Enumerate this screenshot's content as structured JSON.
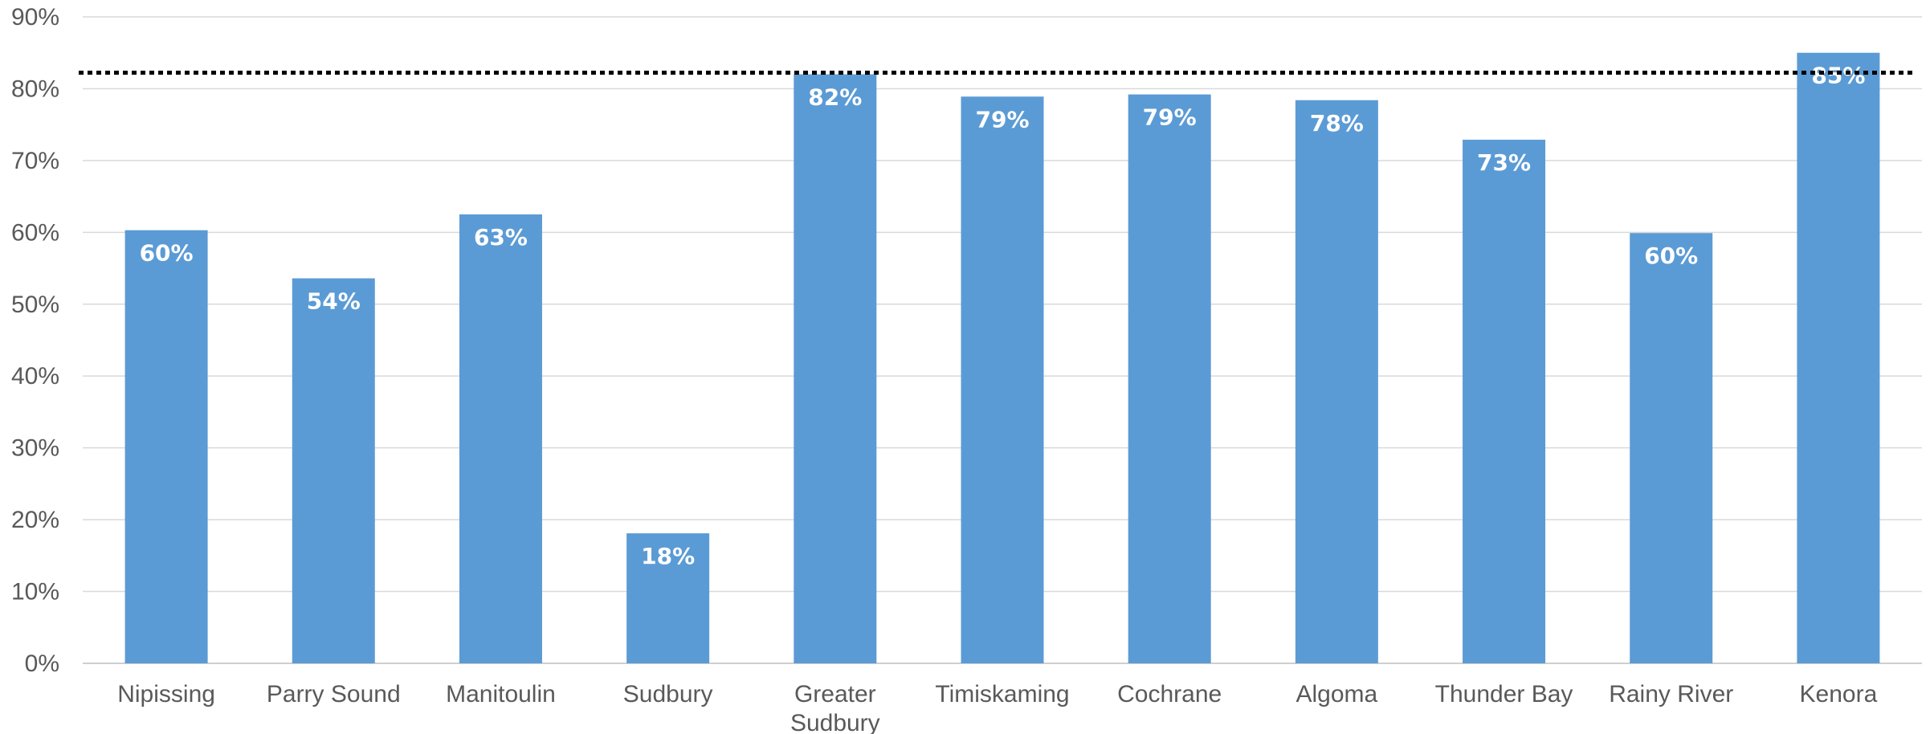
{
  "chart_data": {
    "type": "bar",
    "title": "",
    "xlabel": "",
    "ylabel": "",
    "categories": [
      "Nipissing",
      "Parry Sound",
      "Manitoulin",
      "Sudbury",
      "Greater Sudbury",
      "Timiskaming",
      "Cochrane",
      "Algoma",
      "Thunder Bay",
      "Rainy River",
      "Kenora"
    ],
    "values": [
      60.3,
      53.6,
      62.5,
      18.1,
      82.0,
      78.9,
      79.2,
      78.4,
      72.9,
      59.9,
      85.0
    ],
    "data_labels": [
      "60%",
      "54%",
      "63%",
      "18%",
      "82%",
      "79%",
      "79%",
      "78%",
      "73%",
      "60%",
      "85%"
    ],
    "ylim": [
      0,
      90
    ],
    "yticks": [
      0,
      10,
      20,
      30,
      40,
      50,
      60,
      70,
      80,
      90
    ],
    "ytick_labels": [
      "0%",
      "10%",
      "20%",
      "30%",
      "40%",
      "50%",
      "60%",
      "70%",
      "80%",
      "90%"
    ],
    "reference_line": {
      "value": 82,
      "style": "dotted"
    },
    "grid": true,
    "legend": "none",
    "bar_color": "#5b9bd5"
  }
}
